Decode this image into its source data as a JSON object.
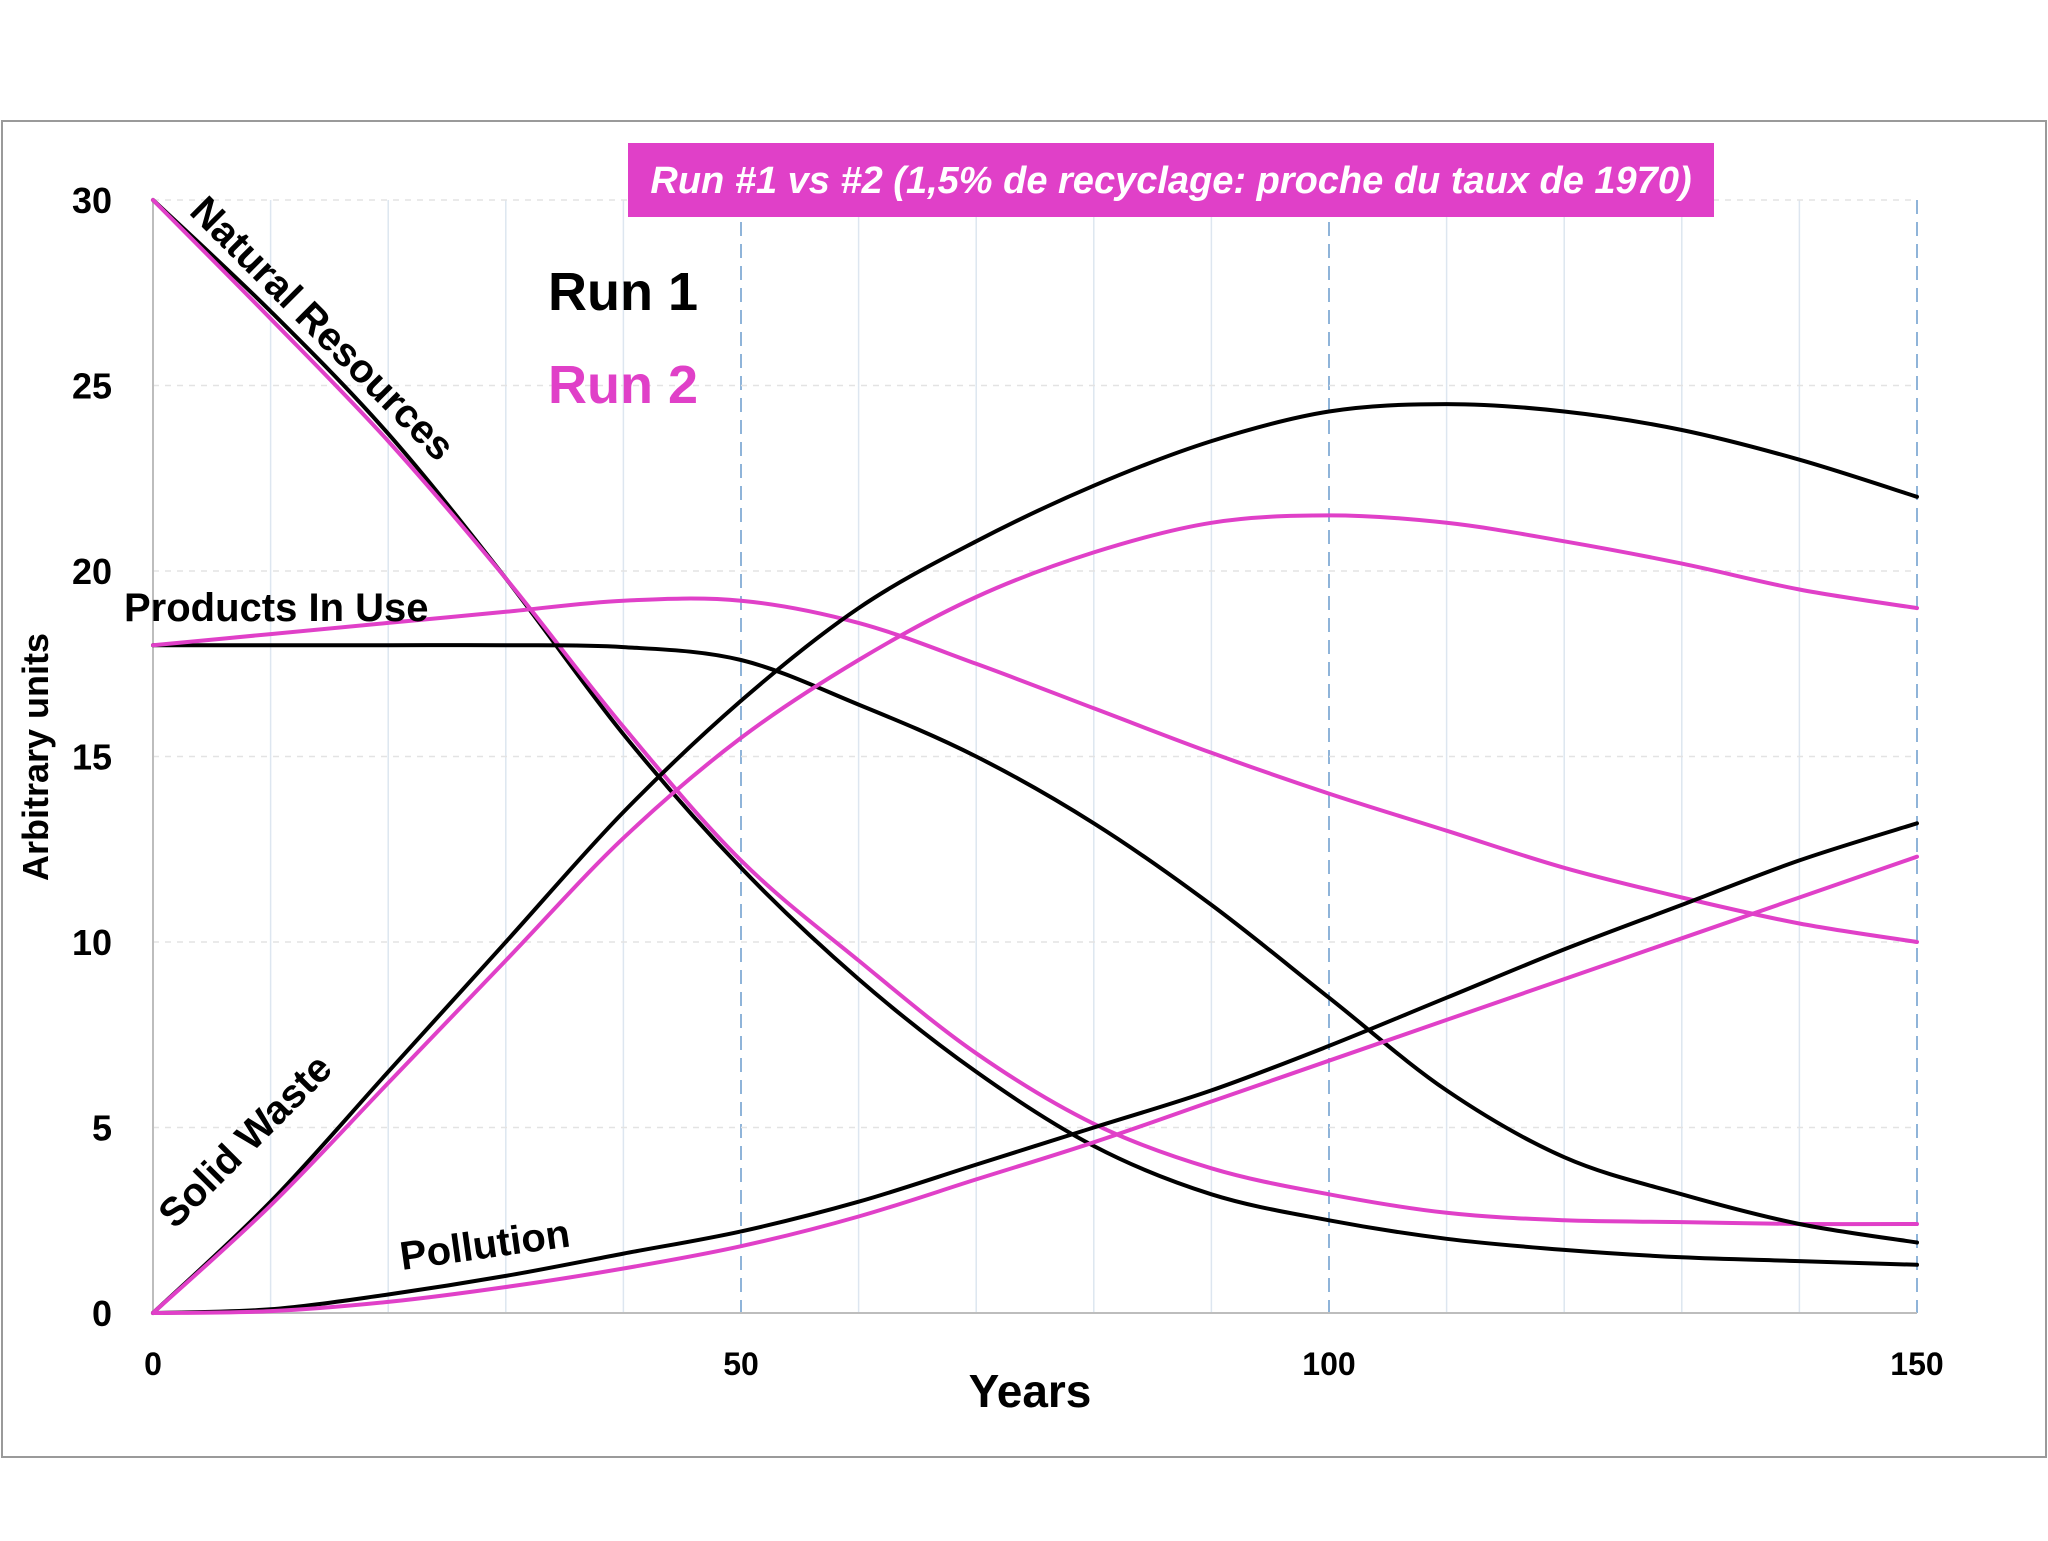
{
  "chart_data": {
    "type": "line",
    "title": "Run #1 vs #2 (1,5% de recyclage: proche du taux de 1970)",
    "xlabel": "Years",
    "ylabel": "Arbitrary units",
    "xlim": [
      0,
      150
    ],
    "ylim": [
      0,
      30
    ],
    "x_ticks": [
      "0",
      "50",
      "100",
      "150"
    ],
    "y_ticks": [
      "0",
      "5",
      "10",
      "15",
      "20",
      "25",
      "30"
    ],
    "grid": true,
    "legend": {
      "position": "top-left",
      "entries": [
        {
          "label": "Run 1",
          "color": "#000000"
        },
        {
          "label": "Run 2",
          "color": "#e040c8"
        }
      ]
    },
    "annotations": [
      {
        "text": "Natural Resources",
        "series": "natural-resources"
      },
      {
        "text": "Products In Use",
        "series": "products-in-use"
      },
      {
        "text": "Solid Waste",
        "series": "solid-waste"
      },
      {
        "text": "Pollution",
        "series": "pollution"
      }
    ],
    "series": [
      {
        "name": "Natural Resources - Run 1",
        "id": "natural-resources-run1",
        "run": 1,
        "color": "#000000",
        "points": [
          [
            0,
            30
          ],
          [
            10,
            27
          ],
          [
            20,
            23.7
          ],
          [
            30,
            19.8
          ],
          [
            40,
            15.6
          ],
          [
            50,
            12
          ],
          [
            60,
            9
          ],
          [
            70,
            6.5
          ],
          [
            80,
            4.5
          ],
          [
            90,
            3.2
          ],
          [
            100,
            2.5
          ],
          [
            110,
            2
          ],
          [
            120,
            1.7
          ],
          [
            130,
            1.5
          ],
          [
            140,
            1.4
          ],
          [
            150,
            1.3
          ]
        ]
      },
      {
        "name": "Natural Resources - Run 2",
        "id": "natural-resources-run2",
        "run": 2,
        "color": "#e040c8",
        "points": [
          [
            0,
            30
          ],
          [
            10,
            26.8
          ],
          [
            20,
            23.5
          ],
          [
            30,
            19.8
          ],
          [
            40,
            15.8
          ],
          [
            50,
            12.2
          ],
          [
            60,
            9.5
          ],
          [
            70,
            7
          ],
          [
            80,
            5.1
          ],
          [
            90,
            3.9
          ],
          [
            100,
            3.2
          ],
          [
            110,
            2.7
          ],
          [
            120,
            2.5
          ],
          [
            130,
            2.45
          ],
          [
            140,
            2.4
          ],
          [
            150,
            2.4
          ]
        ]
      },
      {
        "name": "Products In Use - Run 1",
        "id": "products-in-use-run1",
        "run": 1,
        "color": "#000000",
        "points": [
          [
            0,
            18
          ],
          [
            10,
            18
          ],
          [
            20,
            18
          ],
          [
            30,
            18
          ],
          [
            40,
            17.95
          ],
          [
            50,
            17.6
          ],
          [
            60,
            16.4
          ],
          [
            70,
            15
          ],
          [
            80,
            13.2
          ],
          [
            90,
            11
          ],
          [
            100,
            8.5
          ],
          [
            110,
            6
          ],
          [
            120,
            4.2
          ],
          [
            130,
            3.2
          ],
          [
            140,
            2.4
          ],
          [
            150,
            1.9
          ]
        ]
      },
      {
        "name": "Products In Use - Run 2",
        "id": "products-in-use-run2",
        "run": 2,
        "color": "#e040c8",
        "points": [
          [
            0,
            18
          ],
          [
            10,
            18.3
          ],
          [
            20,
            18.6
          ],
          [
            30,
            18.9
          ],
          [
            40,
            19.2
          ],
          [
            50,
            19.2
          ],
          [
            60,
            18.6
          ],
          [
            70,
            17.5
          ],
          [
            80,
            16.3
          ],
          [
            90,
            15.1
          ],
          [
            100,
            14
          ],
          [
            110,
            13
          ],
          [
            120,
            12
          ],
          [
            130,
            11.2
          ],
          [
            140,
            10.5
          ],
          [
            150,
            10
          ]
        ]
      },
      {
        "name": "Solid Waste - Run 1",
        "id": "solid-waste-run1",
        "run": 1,
        "color": "#000000",
        "points": [
          [
            0,
            0
          ],
          [
            10,
            3
          ],
          [
            20,
            6.5
          ],
          [
            30,
            10
          ],
          [
            40,
            13.5
          ],
          [
            50,
            16.5
          ],
          [
            60,
            19
          ],
          [
            70,
            20.8
          ],
          [
            80,
            22.3
          ],
          [
            90,
            23.5
          ],
          [
            100,
            24.3
          ],
          [
            110,
            24.5
          ],
          [
            120,
            24.3
          ],
          [
            130,
            23.8
          ],
          [
            140,
            23
          ],
          [
            150,
            22
          ]
        ]
      },
      {
        "name": "Solid Waste - Run 2",
        "id": "solid-waste-run2",
        "run": 2,
        "color": "#e040c8",
        "points": [
          [
            0,
            0
          ],
          [
            10,
            2.9
          ],
          [
            20,
            6.2
          ],
          [
            30,
            9.5
          ],
          [
            40,
            12.8
          ],
          [
            50,
            15.5
          ],
          [
            60,
            17.6
          ],
          [
            70,
            19.3
          ],
          [
            80,
            20.5
          ],
          [
            90,
            21.3
          ],
          [
            100,
            21.5
          ],
          [
            110,
            21.3
          ],
          [
            120,
            20.8
          ],
          [
            130,
            20.2
          ],
          [
            140,
            19.5
          ],
          [
            150,
            19
          ]
        ]
      },
      {
        "name": "Pollution - Run 1",
        "id": "pollution-run1",
        "run": 1,
        "color": "#000000",
        "points": [
          [
            0,
            0
          ],
          [
            10,
            0.1
          ],
          [
            20,
            0.5
          ],
          [
            30,
            1
          ],
          [
            40,
            1.6
          ],
          [
            50,
            2.2
          ],
          [
            60,
            3
          ],
          [
            70,
            4
          ],
          [
            80,
            5
          ],
          [
            90,
            6
          ],
          [
            100,
            7.2
          ],
          [
            110,
            8.5
          ],
          [
            120,
            9.8
          ],
          [
            130,
            11
          ],
          [
            140,
            12.2
          ],
          [
            150,
            13.2
          ]
        ]
      },
      {
        "name": "Pollution - Run 2",
        "id": "pollution-run2",
        "run": 2,
        "color": "#e040c8",
        "points": [
          [
            0,
            0
          ],
          [
            10,
            0.05
          ],
          [
            20,
            0.3
          ],
          [
            30,
            0.7
          ],
          [
            40,
            1.2
          ],
          [
            50,
            1.8
          ],
          [
            60,
            2.6
          ],
          [
            70,
            3.6
          ],
          [
            80,
            4.6
          ],
          [
            90,
            5.7
          ],
          [
            100,
            6.8
          ],
          [
            110,
            7.9
          ],
          [
            120,
            9
          ],
          [
            130,
            10.1
          ],
          [
            140,
            11.2
          ],
          [
            150,
            12.3
          ]
        ]
      }
    ]
  }
}
